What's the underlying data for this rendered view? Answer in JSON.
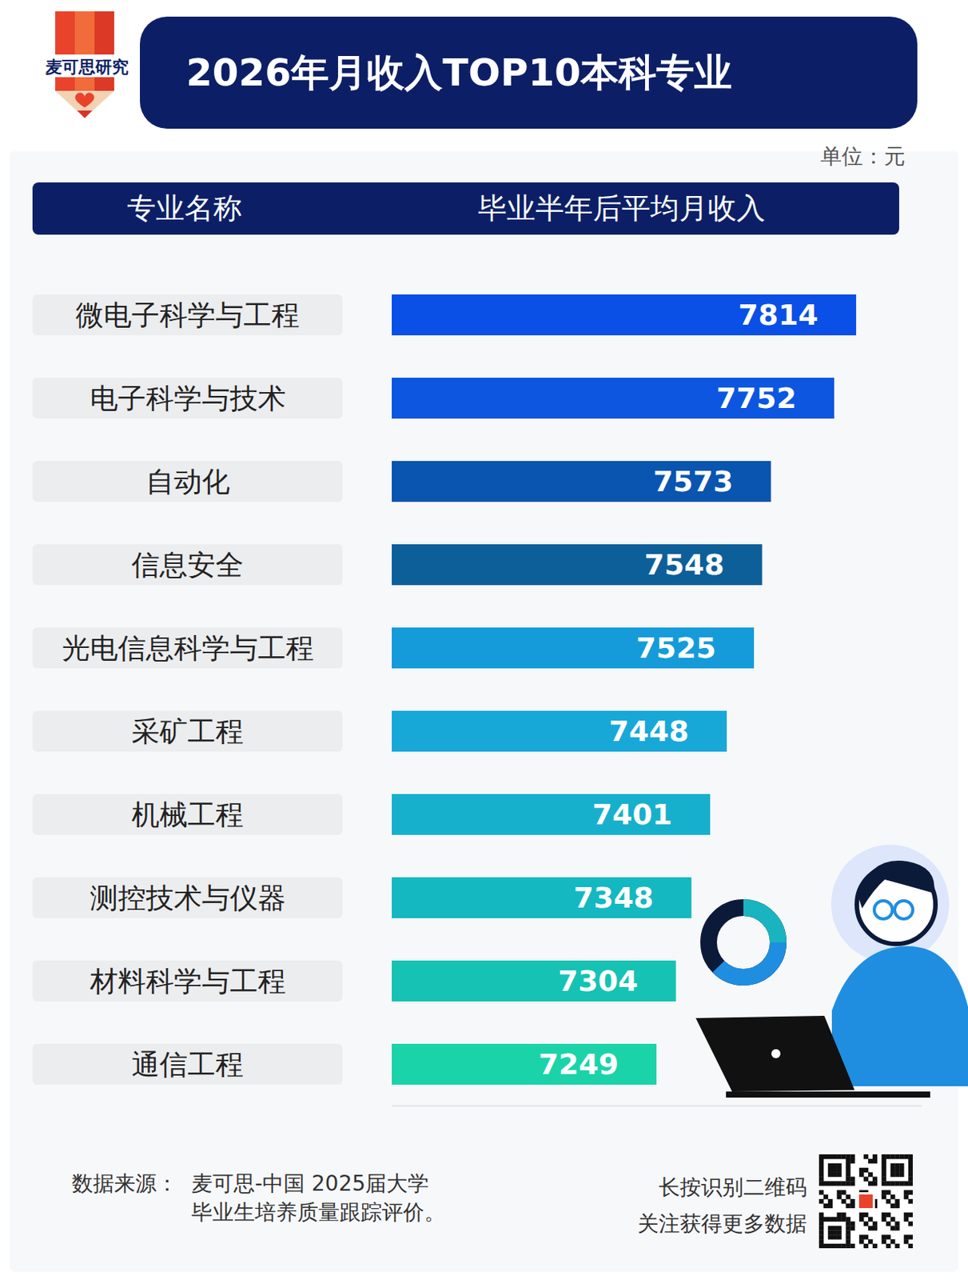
{
  "logo": "麦可思研究",
  "unit": "单位：元",
  "header": [
    "专业名称",
    "毕业半年后平均月收入"
  ],
  "chart_data": {
    "type": "bar",
    "title": "2026年月收入TOP10本科专业",
    "orientation": "horizontal",
    "categories": [
      "微电子科学与工程",
      "电子科学与技术",
      "自动化",
      "信息安全",
      "光电信息科学与工程",
      "采矿工程",
      "机械工程",
      "测控技术与仪器",
      "材料科学与工程",
      "通信工程"
    ],
    "values": [
      7814,
      7752,
      7573,
      7548,
      7525,
      7448,
      7401,
      7348,
      7304,
      7249
    ],
    "colors": [
      "#0a4fe6",
      "#0c56e0",
      "#0a55b0",
      "#0d5f9a",
      "#159bd9",
      "#18a8d8",
      "#17b0cc",
      "#14b8c0",
      "#16c2b3",
      "#1bd3a8"
    ],
    "xlim": [
      6500,
      8000
    ],
    "data_labels": true,
    "tick_labels": "y"
  },
  "source": {
    "label": "数据来源：",
    "lines": [
      "麦可思-中国 2025届大学",
      "毕业生培养质量跟踪评价。"
    ]
  },
  "qr_text": [
    "长按识别二维码",
    "关注获得更多数据"
  ]
}
